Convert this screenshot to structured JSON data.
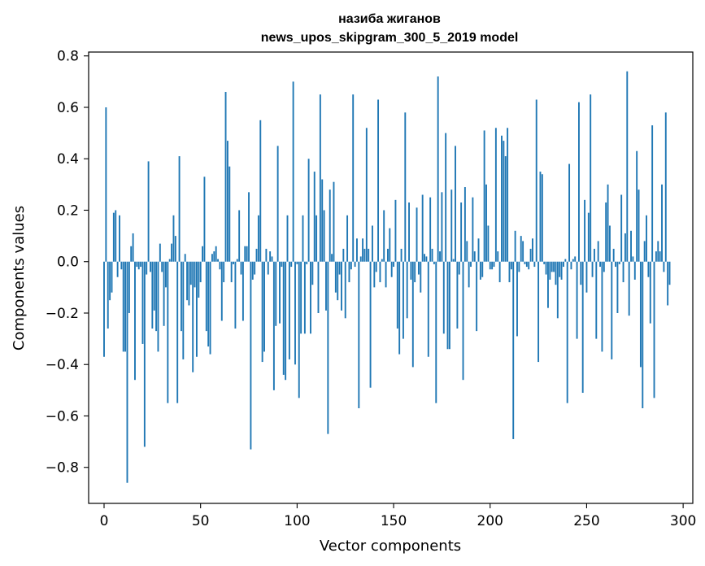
{
  "chart_data": {
    "type": "bar",
    "title": "назиба жиганов",
    "subtitle": "news_upos_skipgram_300_5_2019 model",
    "xlabel": "Vector components",
    "ylabel": "Components values",
    "xlim": [
      -8,
      305
    ],
    "ylim": [
      -0.94,
      0.815
    ],
    "xticks": [
      0,
      50,
      100,
      150,
      200,
      250,
      300
    ],
    "xtick_labels": [
      "0",
      "50",
      "100",
      "150",
      "200",
      "250",
      "300"
    ],
    "yticks": [
      -0.8,
      -0.6,
      -0.4,
      -0.2,
      0.0,
      0.2,
      0.4,
      0.6,
      0.8
    ],
    "ytick_labels": [
      "−0.8",
      "−0.6",
      "−0.4",
      "−0.2",
      "0.0",
      "0.2",
      "0.4",
      "0.6",
      "0.8"
    ],
    "bar_color": "#1f77b4",
    "values": [
      -0.37,
      0.6,
      -0.26,
      -0.15,
      -0.12,
      0.19,
      0.2,
      -0.06,
      0.18,
      -0.03,
      -0.35,
      -0.35,
      -0.86,
      -0.2,
      0.06,
      0.11,
      -0.46,
      -0.02,
      -0.03,
      -0.02,
      -0.32,
      -0.72,
      -0.05,
      0.39,
      -0.04,
      -0.26,
      -0.19,
      -0.27,
      -0.35,
      0.07,
      -0.04,
      -0.25,
      -0.1,
      -0.55,
      0.01,
      0.07,
      0.18,
      0.1,
      -0.55,
      0.41,
      -0.27,
      -0.38,
      0.03,
      -0.15,
      -0.17,
      -0.09,
      -0.43,
      -0.1,
      -0.37,
      -0.14,
      -0.08,
      0.06,
      0.33,
      -0.27,
      -0.33,
      -0.36,
      0.03,
      0.04,
      0.06,
      0.01,
      -0.03,
      -0.23,
      -0.08,
      0.66,
      0.47,
      0.37,
      -0.08,
      -0.01,
      -0.26,
      0.01,
      0.2,
      -0.05,
      -0.23,
      0.06,
      0.06,
      0.27,
      -0.73,
      -0.07,
      -0.05,
      0.05,
      0.18,
      0.55,
      -0.39,
      -0.35,
      0.05,
      -0.05,
      0.04,
      0.02,
      -0.5,
      -0.25,
      0.45,
      -0.24,
      -0.02,
      -0.44,
      -0.46,
      0.18,
      -0.38,
      -0.02,
      0.7,
      -0.4,
      -0.01,
      -0.53,
      -0.28,
      0.18,
      -0.28,
      -0.01,
      0.4,
      -0.28,
      -0.09,
      0.35,
      0.18,
      -0.2,
      0.65,
      0.32,
      0.2,
      -0.19,
      -0.67,
      0.28,
      0.03,
      0.31,
      -0.12,
      -0.15,
      -0.05,
      -0.19,
      0.05,
      -0.22,
      0.18,
      -0.08,
      -0.03,
      0.65,
      -0.02,
      0.09,
      -0.57,
      0.02,
      0.09,
      0.05,
      0.52,
      0.05,
      -0.49,
      0.14,
      -0.1,
      -0.04,
      0.63,
      -0.08,
      0.01,
      0.2,
      -0.1,
      0.05,
      0.13,
      -0.06,
      -0.02,
      0.24,
      -0.26,
      -0.36,
      0.05,
      -0.3,
      0.58,
      -0.22,
      0.23,
      -0.07,
      -0.41,
      -0.08,
      0.21,
      -0.05,
      -0.12,
      0.26,
      0.03,
      0.02,
      -0.37,
      0.25,
      0.05,
      -0.01,
      -0.55,
      0.72,
      0.04,
      0.27,
      -0.28,
      0.5,
      -0.34,
      -0.34,
      0.28,
      0.01,
      0.45,
      -0.26,
      -0.05,
      0.23,
      -0.46,
      0.29,
      0.08,
      -0.1,
      -0.02,
      0.25,
      0.04,
      -0.27,
      0.09,
      -0.07,
      -0.06,
      0.51,
      0.3,
      0.14,
      -0.03,
      -0.03,
      -0.02,
      0.52,
      0.04,
      -0.08,
      0.49,
      0.47,
      0.41,
      0.52,
      -0.08,
      -0.03,
      -0.69,
      0.12,
      -0.29,
      -0.04,
      0.1,
      0.08,
      -0.01,
      -0.02,
      -0.03,
      0.05,
      0.09,
      -0.02,
      0.63,
      -0.39,
      0.35,
      0.34,
      -0.01,
      -0.05,
      -0.18,
      -0.07,
      -0.04,
      -0.04,
      -0.09,
      -0.22,
      -0.06,
      -0.07,
      -0.02,
      0.01,
      -0.55,
      0.38,
      -0.03,
      0.01,
      0.02,
      -0.3,
      0.62,
      -0.09,
      -0.51,
      0.24,
      -0.12,
      0.19,
      0.65,
      -0.06,
      0.05,
      -0.3,
      0.08,
      -0.02,
      -0.35,
      -0.04,
      0.23,
      0.3,
      0.14,
      -0.38,
      0.05,
      -0.02,
      -0.2,
      -0.01,
      0.26,
      -0.08,
      0.11,
      0.74,
      -0.21,
      0.12,
      0.02,
      -0.07,
      0.43,
      0.28,
      -0.41,
      -0.57,
      0.08,
      0.18,
      -0.06,
      -0.24,
      0.53,
      -0.53,
      0.04,
      0.08,
      0.04,
      0.3,
      -0.04,
      0.58,
      -0.17,
      -0.09
    ]
  }
}
